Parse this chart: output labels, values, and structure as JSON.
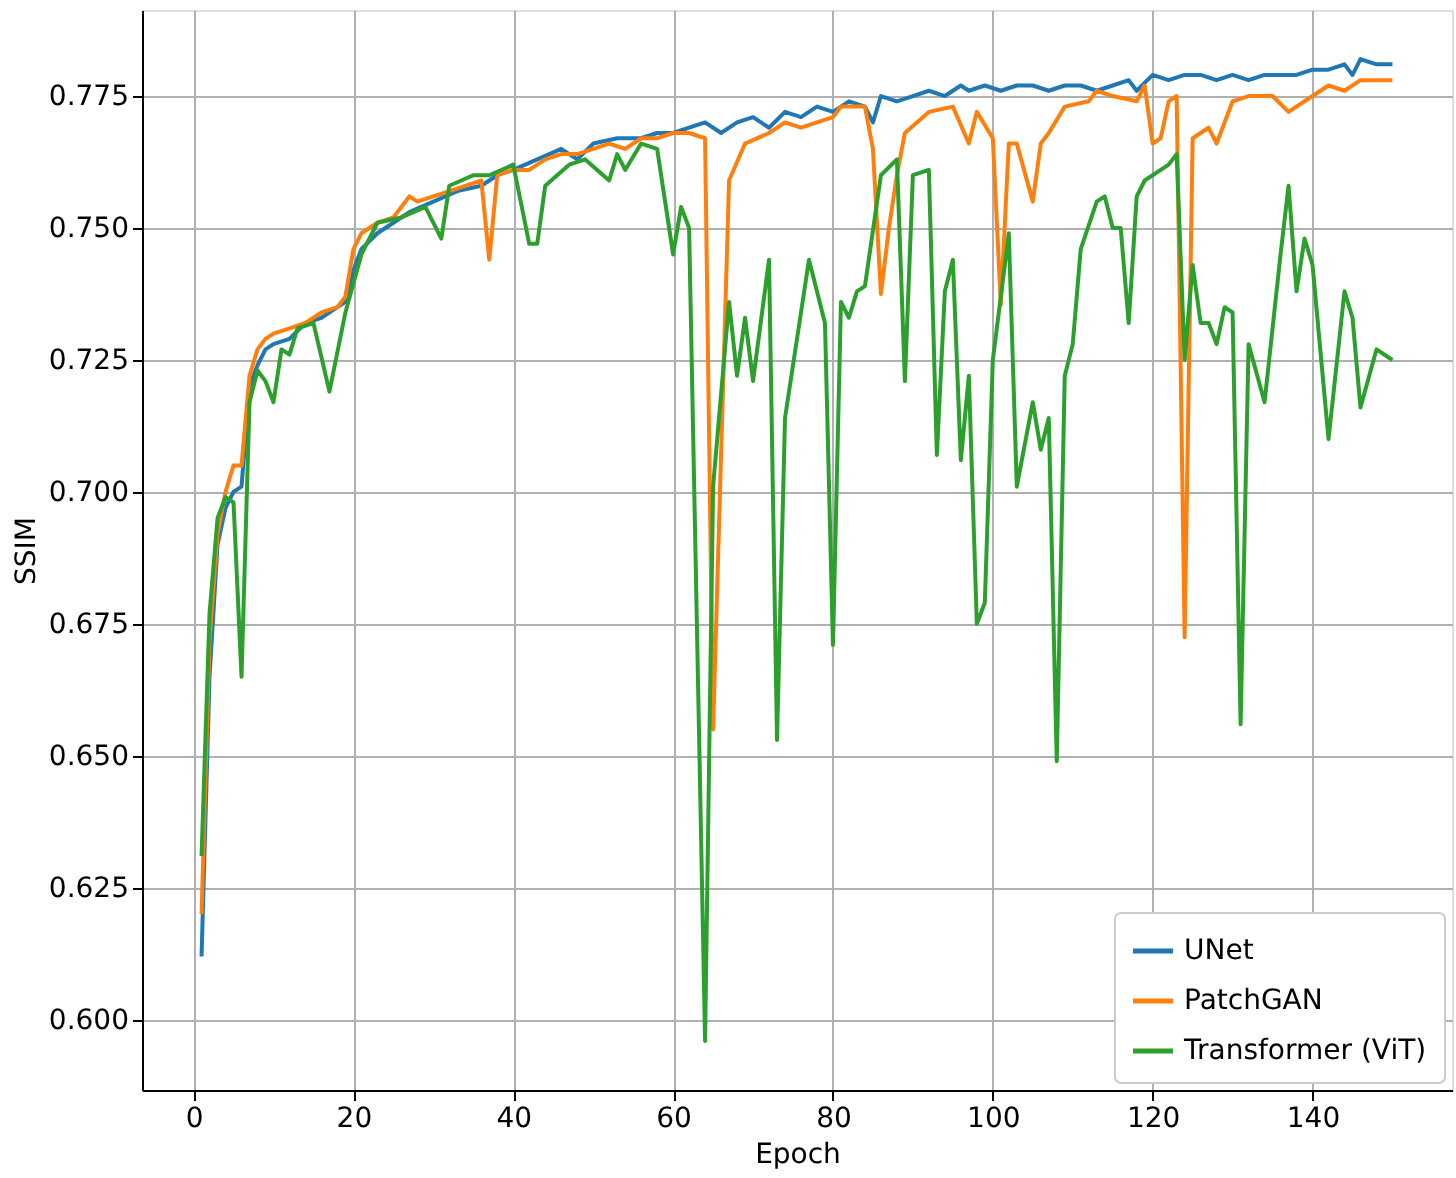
{
  "chart_data": {
    "type": "line",
    "xlabel": "Epoch",
    "ylabel": "SSIM",
    "xlim": [
      -6.45,
      157.45
    ],
    "ylim": [
      0.5867,
      0.7913
    ],
    "xticks": [
      0,
      20,
      40,
      60,
      80,
      100,
      120,
      140
    ],
    "yticks": [
      {
        "value": 0.6,
        "label": "0.600"
      },
      {
        "value": 0.625,
        "label": "0.625"
      },
      {
        "value": 0.65,
        "label": "0.650"
      },
      {
        "value": 0.675,
        "label": "0.675"
      },
      {
        "value": 0.7,
        "label": "0.700"
      },
      {
        "value": 0.725,
        "label": "0.725"
      },
      {
        "value": 0.75,
        "label": "0.750"
      },
      {
        "value": 0.775,
        "label": "0.775"
      }
    ],
    "grid": true,
    "legend": "bottom right",
    "line_style": "solid",
    "marker": "none",
    "series": [
      {
        "name": "UNet",
        "color": "#1f77b4",
        "x": [
          1,
          2,
          3,
          4,
          5,
          6,
          7,
          8,
          9,
          10,
          12,
          14,
          16,
          18,
          19,
          20,
          21,
          23,
          25,
          27,
          30,
          33,
          36,
          38,
          40,
          43,
          46,
          48,
          50,
          53,
          56,
          58,
          60,
          62,
          64,
          66,
          68,
          70,
          72,
          74,
          76,
          78,
          80,
          82,
          84,
          85,
          86,
          88,
          90,
          92,
          94,
          96,
          97,
          99,
          101,
          103,
          105,
          107,
          109,
          111,
          113,
          115,
          117,
          118,
          120,
          122,
          124,
          126,
          128,
          130,
          132,
          134,
          136,
          138,
          140,
          142,
          144,
          145,
          146,
          148,
          150
        ],
        "values": [
          0.612,
          0.665,
          0.69,
          0.697,
          0.7,
          0.701,
          0.72,
          0.724,
          0.727,
          0.728,
          0.729,
          0.732,
          0.733,
          0.735,
          0.736,
          0.742,
          0.746,
          0.749,
          0.751,
          0.753,
          0.755,
          0.757,
          0.758,
          0.76,
          0.761,
          0.763,
          0.765,
          0.763,
          0.766,
          0.767,
          0.767,
          0.768,
          0.768,
          0.769,
          0.77,
          0.768,
          0.77,
          0.771,
          0.769,
          0.772,
          0.771,
          0.773,
          0.772,
          0.774,
          0.773,
          0.77,
          0.775,
          0.774,
          0.775,
          0.776,
          0.775,
          0.777,
          0.776,
          0.777,
          0.776,
          0.777,
          0.777,
          0.776,
          0.777,
          0.777,
          0.776,
          0.777,
          0.778,
          0.776,
          0.779,
          0.778,
          0.779,
          0.779,
          0.778,
          0.779,
          0.778,
          0.779,
          0.779,
          0.779,
          0.78,
          0.78,
          0.781,
          0.779,
          0.782,
          0.781,
          0.781
        ]
      },
      {
        "name": "PatchGAN",
        "color": "#ff7f0e",
        "x": [
          1,
          2,
          3,
          4,
          5,
          6,
          7,
          8,
          9,
          10,
          12,
          14,
          16,
          18,
          19,
          20,
          21,
          23,
          25,
          27,
          28,
          30,
          32,
          34,
          36,
          37,
          38,
          40,
          42,
          44,
          46,
          48,
          50,
          52,
          54,
          56,
          58,
          60,
          62,
          64,
          65,
          67,
          69,
          72,
          74,
          76,
          80,
          81,
          84,
          85,
          86,
          87,
          88,
          89,
          92,
          95,
          97,
          98,
          100,
          101,
          102,
          103,
          105,
          106,
          107,
          109,
          112,
          113,
          115,
          118,
          119,
          120,
          121,
          122,
          123,
          124,
          125,
          127,
          128,
          130,
          132,
          135,
          137,
          140,
          142,
          144,
          146,
          150
        ],
        "values": [
          0.62,
          0.672,
          0.692,
          0.7,
          0.705,
          0.705,
          0.722,
          0.727,
          0.729,
          0.73,
          0.731,
          0.732,
          0.734,
          0.735,
          0.737,
          0.746,
          0.749,
          0.751,
          0.752,
          0.756,
          0.755,
          0.756,
          0.757,
          0.758,
          0.759,
          0.744,
          0.76,
          0.761,
          0.761,
          0.763,
          0.764,
          0.764,
          0.765,
          0.766,
          0.765,
          0.767,
          0.767,
          0.768,
          0.768,
          0.767,
          0.655,
          0.759,
          0.766,
          0.768,
          0.77,
          0.769,
          0.771,
          0.773,
          0.773,
          0.765,
          0.7375,
          0.75,
          0.76,
          0.768,
          0.772,
          0.773,
          0.766,
          0.772,
          0.767,
          0.7355,
          0.766,
          0.766,
          0.755,
          0.766,
          0.768,
          0.773,
          0.774,
          0.776,
          0.775,
          0.774,
          0.777,
          0.766,
          0.767,
          0.774,
          0.775,
          0.6725,
          0.767,
          0.769,
          0.766,
          0.774,
          0.775,
          0.775,
          0.772,
          0.775,
          0.777,
          0.776,
          0.778,
          0.778
        ]
      },
      {
        "name": "Transformer (ViT)",
        "color": "#2ca02c",
        "x": [
          1,
          2,
          3,
          4,
          5,
          6,
          7,
          8,
          9,
          10,
          11,
          12,
          13,
          15,
          17,
          19,
          21,
          23,
          26,
          29,
          31,
          32,
          35,
          37,
          40,
          42,
          43,
          44,
          47,
          49,
          52,
          53,
          54,
          56,
          58,
          60,
          61,
          62,
          64,
          65,
          67,
          68,
          69,
          70,
          72,
          73,
          74,
          77,
          79,
          80,
          81,
          82,
          83,
          84,
          86,
          88,
          89,
          90,
          92,
          93,
          94,
          95,
          96,
          97,
          98,
          99,
          100,
          102,
          103,
          105,
          106,
          107,
          108,
          109,
          110,
          111,
          113,
          114,
          115,
          116,
          117,
          118,
          119,
          122,
          123,
          124,
          125,
          126,
          127,
          128,
          129,
          130,
          131,
          132,
          134,
          136,
          137,
          138,
          139,
          140,
          142,
          144,
          145,
          146,
          148,
          150
        ],
        "values": [
          0.631,
          0.677,
          0.695,
          0.699,
          0.698,
          0.665,
          0.717,
          0.723,
          0.721,
          0.717,
          0.727,
          0.726,
          0.731,
          0.732,
          0.719,
          0.734,
          0.745,
          0.751,
          0.752,
          0.754,
          0.748,
          0.758,
          0.76,
          0.76,
          0.762,
          0.747,
          0.747,
          0.758,
          0.762,
          0.763,
          0.759,
          0.764,
          0.761,
          0.766,
          0.765,
          0.745,
          0.754,
          0.75,
          0.596,
          0.701,
          0.736,
          0.722,
          0.733,
          0.721,
          0.744,
          0.653,
          0.714,
          0.744,
          0.732,
          0.671,
          0.736,
          0.733,
          0.738,
          0.739,
          0.76,
          0.763,
          0.721,
          0.76,
          0.761,
          0.707,
          0.738,
          0.744,
          0.706,
          0.722,
          0.675,
          0.679,
          0.725,
          0.749,
          0.701,
          0.717,
          0.708,
          0.714,
          0.649,
          0.722,
          0.728,
          0.746,
          0.755,
          0.756,
          0.75,
          0.75,
          0.732,
          0.756,
          0.759,
          0.762,
          0.764,
          0.725,
          0.743,
          0.732,
          0.732,
          0.728,
          0.735,
          0.734,
          0.656,
          0.728,
          0.717,
          0.745,
          0.758,
          0.738,
          0.748,
          0.743,
          0.71,
          0.738,
          0.733,
          0.716,
          0.727,
          0.725
        ]
      }
    ]
  }
}
